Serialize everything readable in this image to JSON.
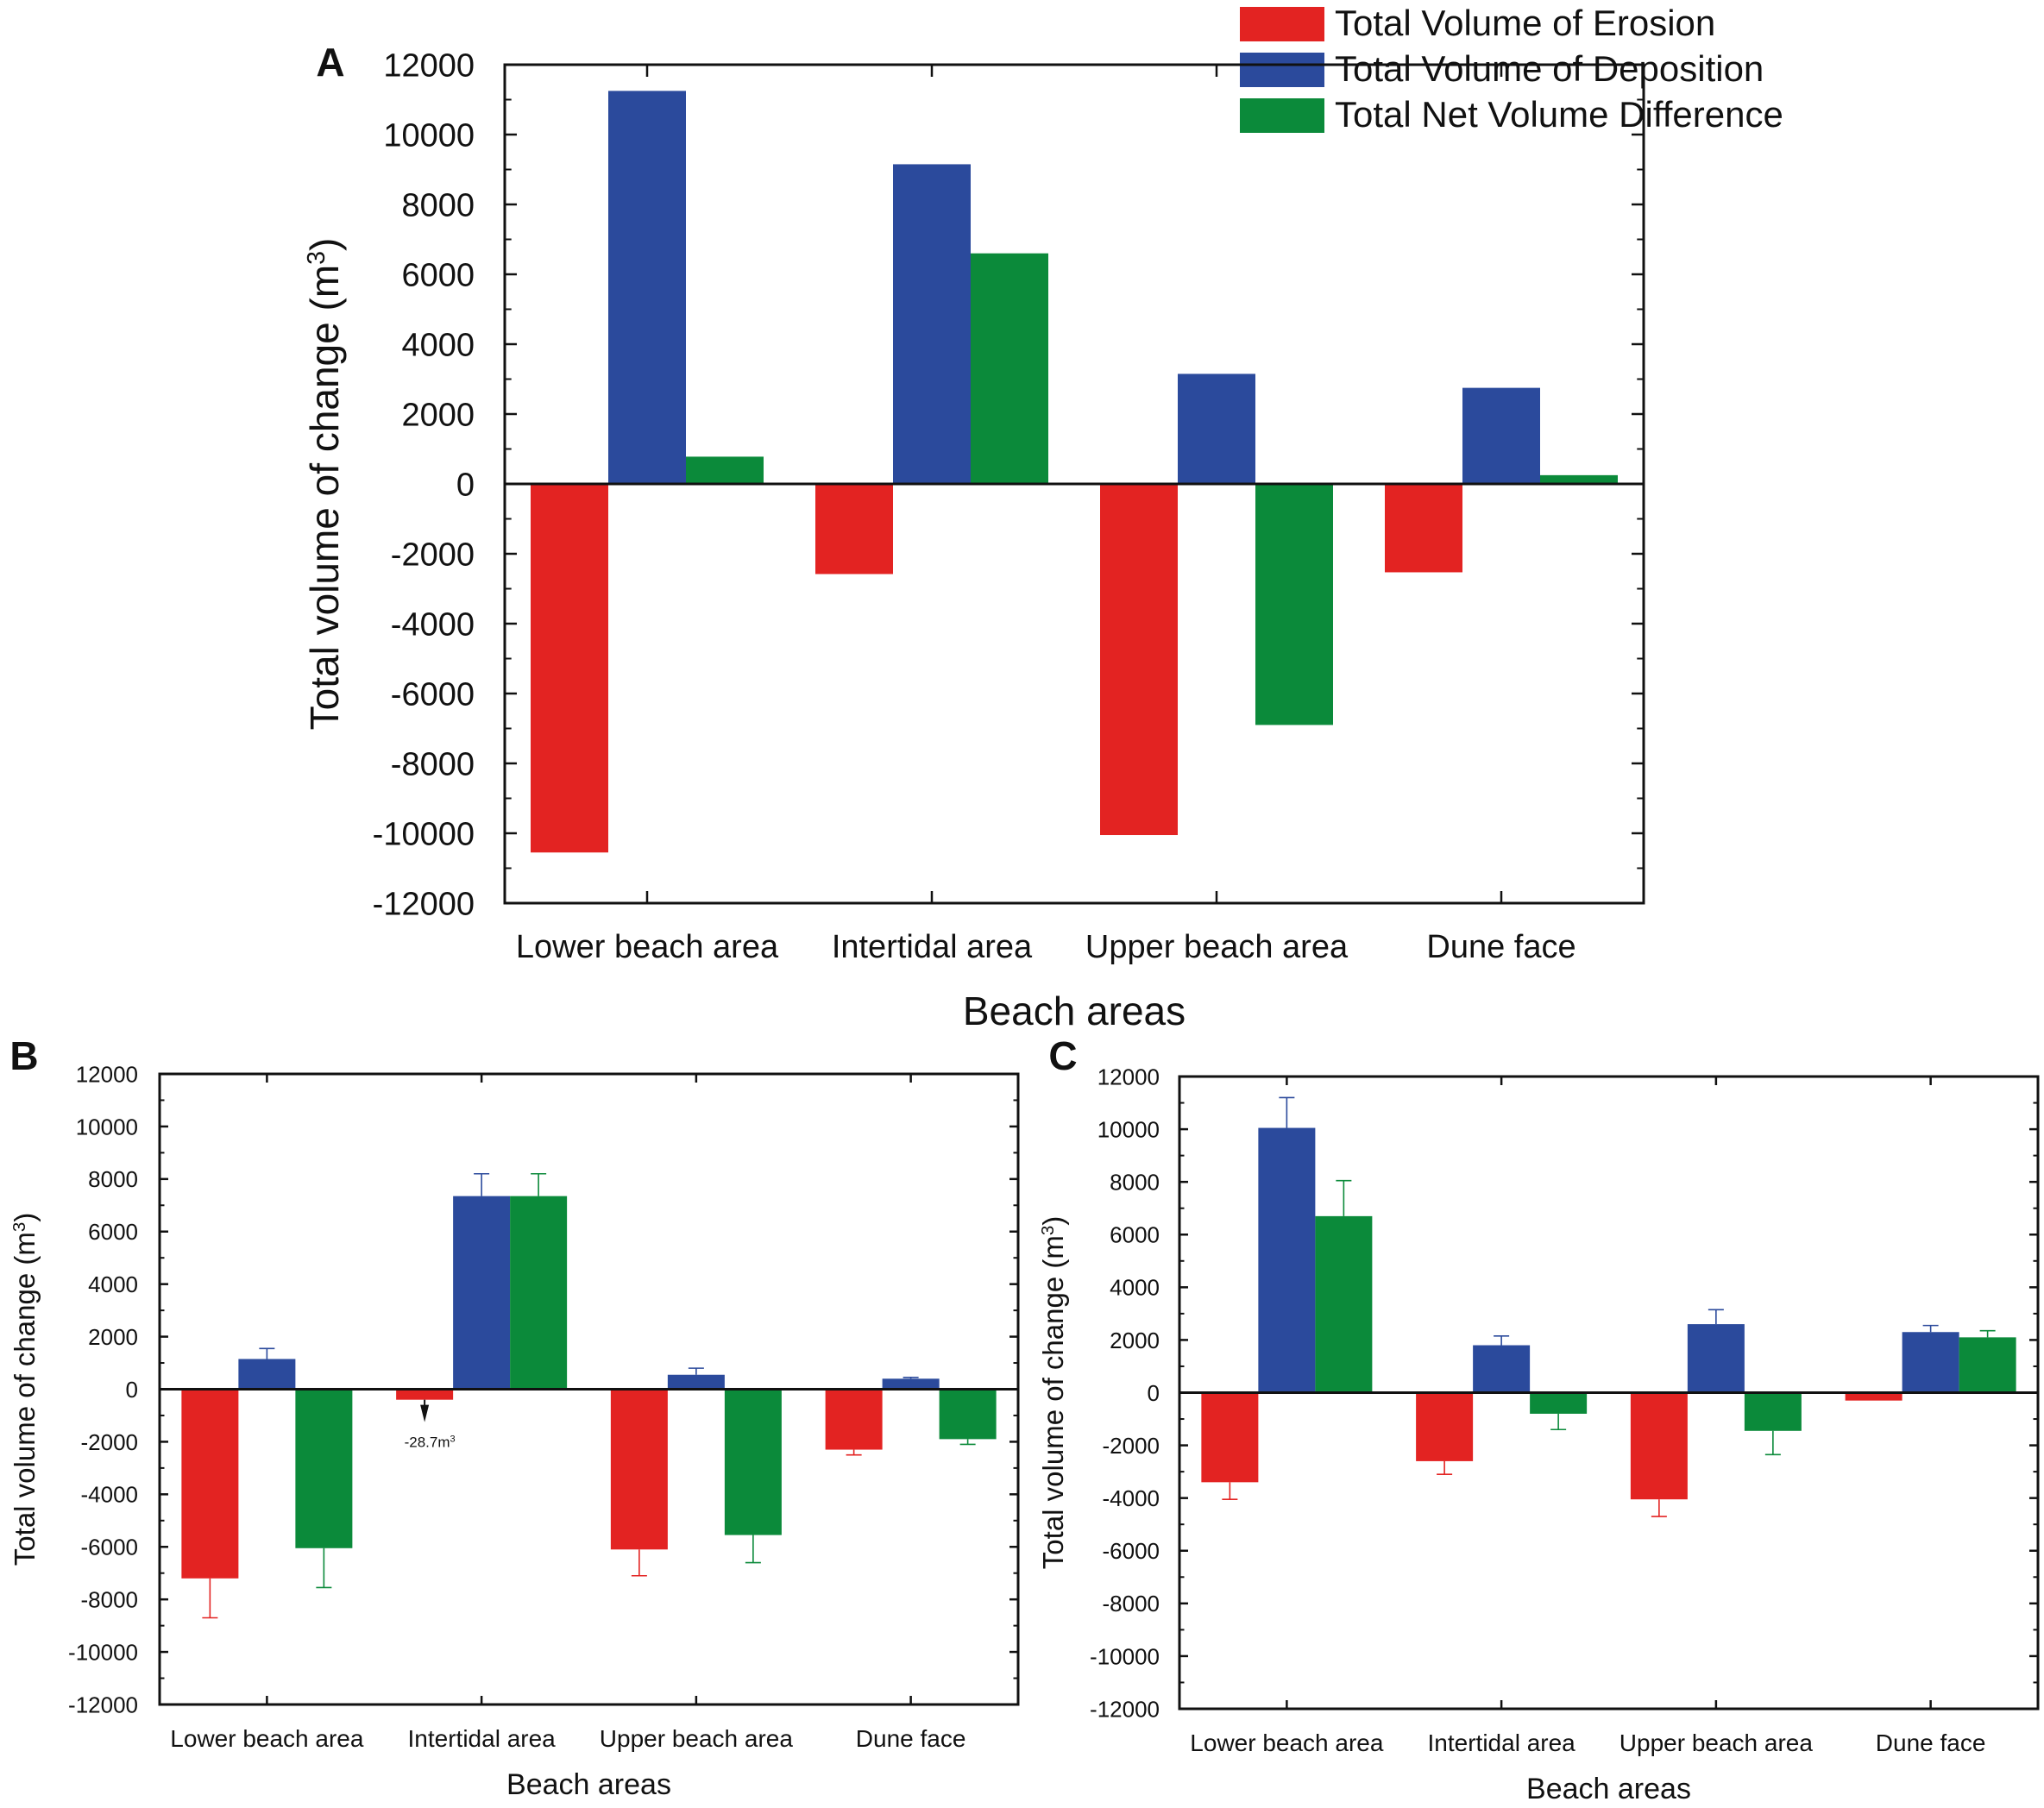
{
  "legend": [
    {
      "label": "Total Volume of Erosion",
      "color": "#e32322"
    },
    {
      "label": "Total Volume of Deposition",
      "color": "#2b4a9c"
    },
    {
      "label": "Total Net Volume Difference",
      "color": "#0b8a3a"
    }
  ],
  "chart_data": [
    {
      "panel": "A",
      "type": "bar",
      "xlabel": "Beach areas",
      "ylabel": "Total volume of change (m",
      "ylabel_sup": "3",
      "ylabel_end": ")",
      "ylim": [
        -12000,
        12000
      ],
      "yticks": [
        12000,
        10000,
        8000,
        6000,
        4000,
        2000,
        0,
        -2000,
        -4000,
        -6000,
        -8000,
        -10000,
        -12000
      ],
      "categories": [
        "Lower beach area",
        "Intertidal area",
        "Upper beach area",
        "Dune face"
      ],
      "series": [
        {
          "name": "Total Volume of Erosion",
          "values": [
            -10550,
            -2580,
            -10050,
            -2530
          ]
        },
        {
          "name": "Total Volume of Deposition",
          "values": [
            11250,
            9150,
            3150,
            2750
          ]
        },
        {
          "name": "Total Net Volume Difference",
          "values": [
            780,
            6600,
            -6900,
            250
          ]
        }
      ]
    },
    {
      "panel": "B",
      "type": "bar",
      "xlabel": "Beach areas",
      "ylabel": "Total volume of change (m",
      "ylabel_sup": "3",
      "ylabel_end": ")",
      "ylim": [
        -12000,
        12000
      ],
      "yticks": [
        12000,
        10000,
        8000,
        6000,
        4000,
        2000,
        0,
        -2000,
        -4000,
        -6000,
        -8000,
        -10000,
        -12000
      ],
      "categories": [
        "Lower beach area",
        "Intertidal area",
        "Upper beach area",
        "Dune face"
      ],
      "series": [
        {
          "name": "Total Volume of Erosion",
          "values": [
            -7200,
            -400,
            -6100,
            -2300
          ],
          "errors": [
            1500,
            0,
            1000,
            200
          ]
        },
        {
          "name": "Total Volume of Deposition",
          "values": [
            1150,
            7350,
            550,
            400
          ],
          "errors": [
            400,
            850,
            250,
            50
          ]
        },
        {
          "name": "Total Net Volume Difference",
          "values": [
            -6050,
            7350,
            -5550,
            -1900
          ],
          "errors": [
            1500,
            850,
            1050,
            200
          ]
        }
      ],
      "annotation": {
        "text": "-28.7m",
        "sup": "3"
      }
    },
    {
      "panel": "C",
      "type": "bar",
      "xlabel": "Beach areas",
      "ylabel": "Total volume of change (m",
      "ylabel_sup": "3",
      "ylabel_end": ")",
      "ylim": [
        -12000,
        12000
      ],
      "yticks": [
        12000,
        10000,
        8000,
        6000,
        4000,
        2000,
        0,
        -2000,
        -4000,
        -6000,
        -8000,
        -10000,
        -12000
      ],
      "categories": [
        "Lower beach area",
        "Intertidal area",
        "Upper beach area",
        "Dune face"
      ],
      "series": [
        {
          "name": "Total Volume of Erosion",
          "values": [
            -3400,
            -2600,
            -4050,
            -300
          ],
          "errors": [
            650,
            500,
            650,
            0
          ]
        },
        {
          "name": "Total Volume of Deposition",
          "values": [
            10050,
            1800,
            2600,
            2300
          ],
          "errors": [
            1150,
            350,
            550,
            250
          ]
        },
        {
          "name": "Total Net Volume Difference",
          "values": [
            6700,
            -800,
            -1450,
            2100
          ],
          "errors": [
            1350,
            600,
            900,
            250
          ]
        }
      ]
    }
  ]
}
